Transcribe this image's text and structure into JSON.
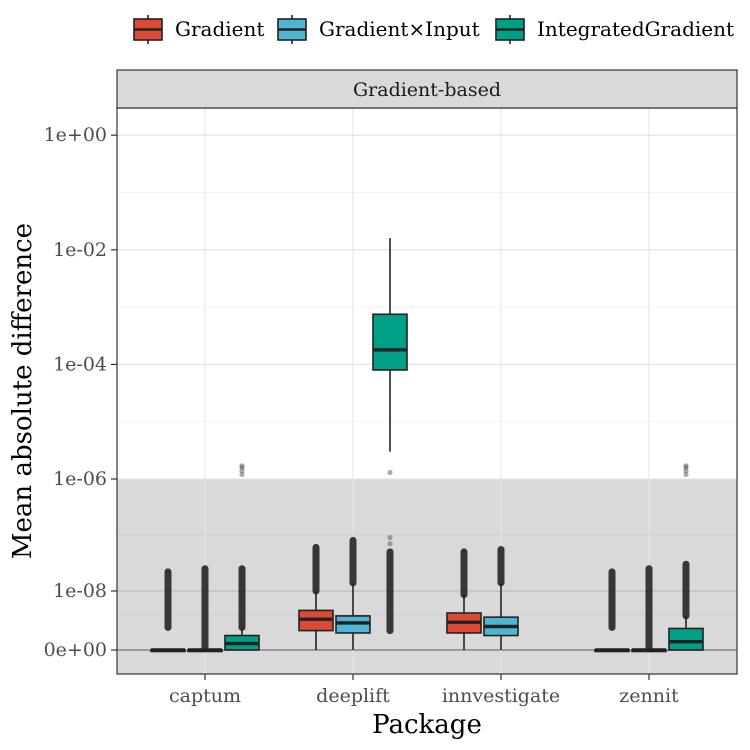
{
  "chart_data": {
    "type": "boxplot",
    "facet_title": "Gradient-based",
    "xlabel": "Package",
    "ylabel": "Mean absolute difference",
    "y_scale": "pseudo-log",
    "y_ticks": [
      "0e+00",
      "1e-08",
      "1e-06",
      "1e-04",
      "1e-02",
      "1e+00"
    ],
    "y_tick_values": [
      0,
      1e-08,
      1e-06,
      0.0001,
      0.01,
      1
    ],
    "shaded_region": {
      "from": 0,
      "to": 1e-06,
      "color": "#d9d9d9"
    },
    "categories": [
      "captum",
      "deeplift",
      "innvestigate",
      "zennit"
    ],
    "legend_position": "top",
    "series": [
      {
        "name": "Gradient",
        "color": "#dc4a35",
        "boxes": [
          {
            "category": "captum",
            "lower_whisker": 0,
            "q1": 0,
            "median": 0,
            "q3": 0,
            "upper_whisker": 0,
            "outliers_range": [
              1.5e-09,
              2.2e-08
            ]
          },
          {
            "category": "deeplift",
            "lower_whisker": 0,
            "q1": 1.2e-09,
            "median": 2.5e-09,
            "q3": 4e-09,
            "upper_whisker": 1e-08,
            "outliers_range": [
              1e-08,
              6e-08
            ]
          },
          {
            "category": "innvestigate",
            "lower_whisker": 0,
            "q1": 1e-09,
            "median": 2.1e-09,
            "q3": 3.5e-09,
            "upper_whisker": 8.5e-09,
            "outliers_range": [
              8.5e-09,
              5e-08
            ]
          },
          {
            "category": "zennit",
            "lower_whisker": 0,
            "q1": 0,
            "median": 0,
            "q3": 0,
            "upper_whisker": 0,
            "outliers_range": [
              1.5e-09,
              2.2e-08
            ]
          }
        ]
      },
      {
        "name": "Gradient×Input",
        "color": "#4fb5d2",
        "boxes": [
          {
            "category": "captum",
            "lower_whisker": 0,
            "q1": 0,
            "median": 0,
            "q3": 0,
            "upper_whisker": 0,
            "outliers_range": [
              1e-10,
              2.5e-08
            ]
          },
          {
            "category": "deeplift",
            "lower_whisker": 0,
            "q1": 1e-09,
            "median": 2e-09,
            "q3": 3e-09,
            "upper_whisker": 1.4e-08,
            "outliers_range": [
              1.4e-08,
              8e-08
            ]
          },
          {
            "category": "innvestigate",
            "lower_whisker": 0,
            "q1": 8e-10,
            "median": 1.6e-09,
            "q3": 2.8e-09,
            "upper_whisker": 1.4e-08,
            "outliers_range": [
              1.4e-08,
              5.5e-08
            ]
          },
          {
            "category": "zennit",
            "lower_whisker": 0,
            "q1": 0,
            "median": 0,
            "q3": 0,
            "upper_whisker": 0,
            "outliers_range": [
              1e-10,
              2.5e-08
            ]
          }
        ]
      },
      {
        "name": "IntegratedGradient",
        "color": "#00a087",
        "boxes": [
          {
            "category": "captum",
            "lower_whisker": 0,
            "q1": 0,
            "median": 3e-10,
            "q3": 8e-10,
            "upper_whisker": 1.5e-09,
            "outliers_range": [
              1.5e-09,
              2.5e-08
            ],
            "extreme_outliers": [
              1.2e-06,
              1.4e-06,
              1.6e-06,
              1.7e-06
            ]
          },
          {
            "category": "deeplift",
            "lower_whisker": 3e-06,
            "q1": 8e-05,
            "median": 0.00018,
            "q3": 0.00075,
            "upper_whisker": 0.016,
            "outliers_range": [
              1.2e-09,
              5e-08
            ],
            "extreme_outliers": [
              1.3e-06,
              9e-08,
              7e-08
            ]
          },
          {
            "category": "innvestigate",
            "lower_whisker": null,
            "q1": null,
            "median": null,
            "q3": null,
            "upper_whisker": null,
            "outliers_range": null
          },
          {
            "category": "zennit",
            "lower_whisker": 0,
            "q1": 0,
            "median": 4e-10,
            "q3": 1.4e-09,
            "upper_whisker": 3e-09,
            "outliers_range": [
              3e-09,
              3e-08
            ],
            "extreme_outliers": [
              1.2e-06,
              1.4e-06,
              1.6e-06,
              1.7e-06
            ]
          }
        ]
      }
    ]
  }
}
